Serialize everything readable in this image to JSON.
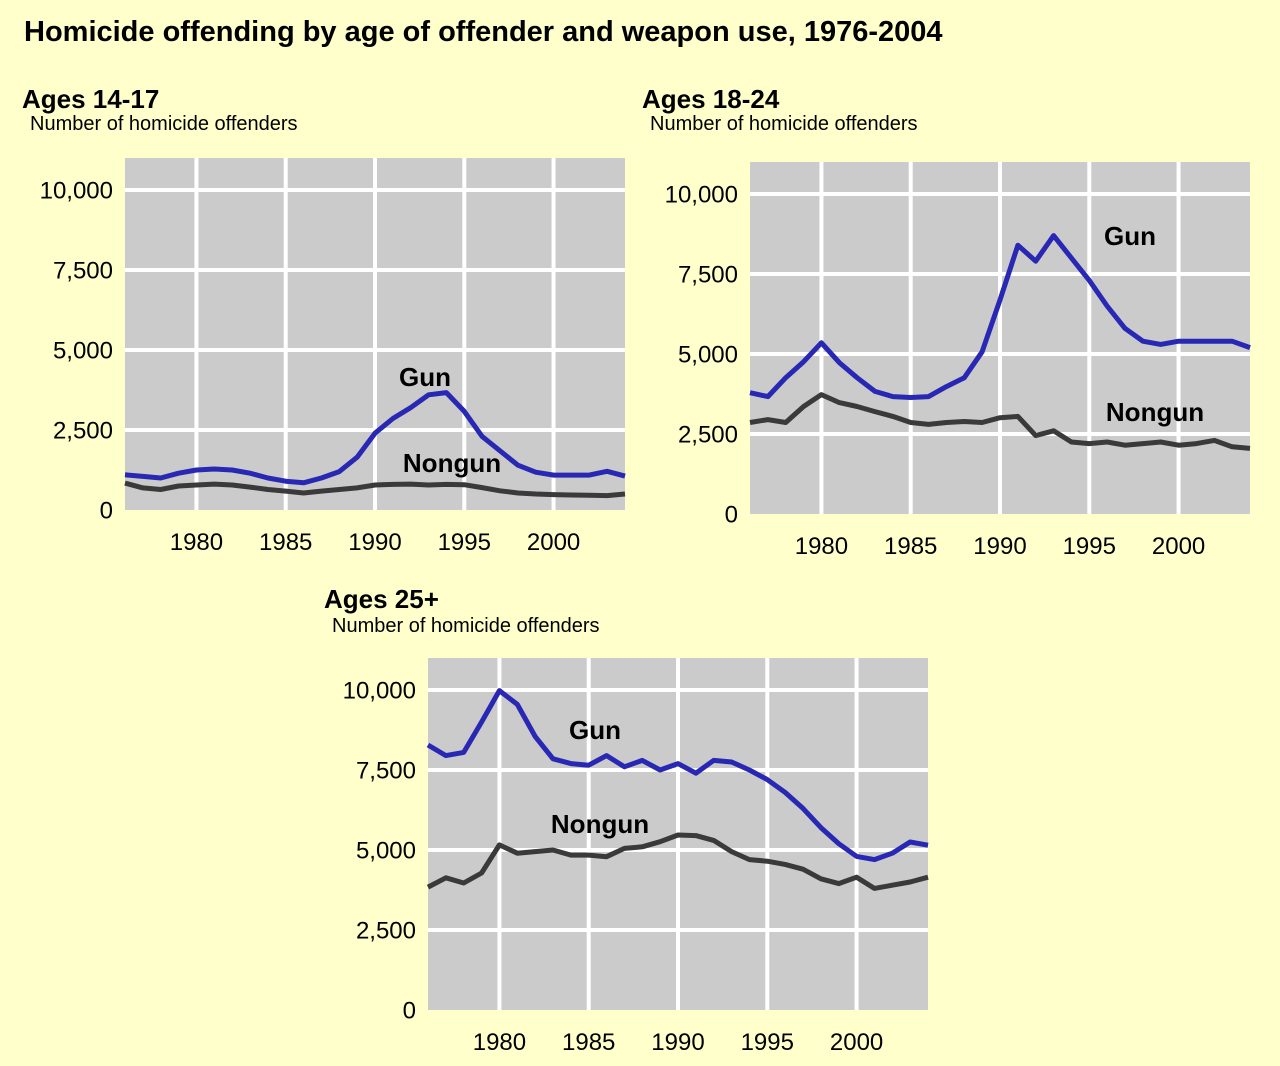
{
  "page": {
    "title": "Homicide offending by age of offender and weapon use, 1976-2004",
    "background_color": "#FFFFCC"
  },
  "colors": {
    "plot_bg": "#CBCBCB",
    "gridline": "#FFFFFF",
    "gun": "#2828B4",
    "nongun": "#3A3A3A",
    "text": "#000000"
  },
  "chart_data": [
    {
      "type": "line",
      "panel_title": "Ages 14-17",
      "ylabel": "Number of homicide offenders",
      "x": [
        1976,
        1977,
        1978,
        1979,
        1980,
        1981,
        1982,
        1983,
        1984,
        1985,
        1986,
        1987,
        1988,
        1989,
        1990,
        1991,
        1992,
        1993,
        1994,
        1995,
        1996,
        1997,
        1998,
        1999,
        2000,
        2001,
        2002,
        2003,
        2004
      ],
      "xlim": [
        1976,
        2004
      ],
      "ylim": [
        0,
        11000
      ],
      "grid": true,
      "legend_position": "inline-labels",
      "ytick_values": [
        0,
        2500,
        5000,
        7500,
        10000
      ],
      "ytick_labels": [
        "0",
        "2,500",
        "5,000",
        "7,500",
        "10,000"
      ],
      "xtick_values": [
        1980,
        1985,
        1990,
        1995,
        2000
      ],
      "xtick_labels": [
        "1980",
        "1985",
        "1990",
        "1995",
        "2000"
      ],
      "series": [
        {
          "name": "Nongun",
          "color": "#3A3A3A",
          "values": [
            840,
            690,
            640,
            750,
            780,
            810,
            780,
            715,
            640,
            590,
            530,
            590,
            640,
            690,
            780,
            800,
            810,
            780,
            800,
            790,
            700,
            600,
            530,
            500,
            480,
            470,
            460,
            450,
            500
          ]
        },
        {
          "name": "Gun",
          "color": "#2828B4",
          "values": [
            1100,
            1050,
            1000,
            1150,
            1250,
            1280,
            1250,
            1150,
            1000,
            900,
            850,
            1000,
            1200,
            1650,
            2400,
            2860,
            3200,
            3600,
            3670,
            3080,
            2300,
            1850,
            1400,
            1180,
            1090,
            1090,
            1090,
            1210,
            1060
          ]
        }
      ]
    },
    {
      "type": "line",
      "panel_title": "Ages 18-24",
      "ylabel": "Number of homicide offenders",
      "x": [
        1976,
        1977,
        1978,
        1979,
        1980,
        1981,
        1982,
        1983,
        1984,
        1985,
        1986,
        1987,
        1988,
        1989,
        1990,
        1991,
        1992,
        1993,
        1994,
        1995,
        1996,
        1997,
        1998,
        1999,
        2000,
        2001,
        2002,
        2003,
        2004
      ],
      "xlim": [
        1976,
        2004
      ],
      "ylim": [
        0,
        11000
      ],
      "grid": true,
      "legend_position": "inline-labels",
      "ytick_values": [
        0,
        2500,
        5000,
        7500,
        10000
      ],
      "ytick_labels": [
        "0",
        "2,500",
        "5,000",
        "7,500",
        "10,000"
      ],
      "xtick_values": [
        1980,
        1985,
        1990,
        1995,
        2000
      ],
      "xtick_labels": [
        "1980",
        "1985",
        "1990",
        "1995",
        "2000"
      ],
      "series": [
        {
          "name": "Nongun",
          "color": "#3A3A3A",
          "values": [
            2860,
            2950,
            2860,
            3360,
            3730,
            3480,
            3360,
            3200,
            3050,
            2860,
            2800,
            2860,
            2890,
            2860,
            3010,
            3050,
            2450,
            2600,
            2250,
            2200,
            2250,
            2150,
            2200,
            2250,
            2150,
            2200,
            2300,
            2100,
            2050
          ]
        },
        {
          "name": "Gun",
          "color": "#2828B4",
          "values": [
            3790,
            3670,
            4260,
            4760,
            5350,
            4730,
            4260,
            3830,
            3670,
            3640,
            3670,
            3980,
            4260,
            5070,
            6690,
            8400,
            7900,
            8700,
            8000,
            7300,
            6500,
            5800,
            5400,
            5300,
            5400,
            5400,
            5400,
            5400,
            5200
          ]
        }
      ]
    },
    {
      "type": "line",
      "panel_title": "Ages 25+",
      "ylabel": "Number of homicide offenders",
      "x": [
        1976,
        1977,
        1978,
        1979,
        1980,
        1981,
        1982,
        1983,
        1984,
        1985,
        1986,
        1987,
        1988,
        1989,
        1990,
        1991,
        1992,
        1993,
        1994,
        1995,
        1996,
        1997,
        1998,
        1999,
        2000,
        2001,
        2002,
        2003,
        2004
      ],
      "xlim": [
        1976,
        2004
      ],
      "ylim": [
        0,
        11000
      ],
      "grid": true,
      "legend_position": "inline-labels",
      "ytick_values": [
        0,
        2500,
        5000,
        7500,
        10000
      ],
      "ytick_labels": [
        "0",
        "2,500",
        "5,000",
        "7,500",
        "10,000"
      ],
      "xtick_values": [
        1980,
        1985,
        1990,
        1995,
        2000
      ],
      "xtick_labels": [
        "1980",
        "1985",
        "1990",
        "1995",
        "2000"
      ],
      "series": [
        {
          "name": "Nongun",
          "color": "#3A3A3A",
          "values": [
            3840,
            4130,
            3970,
            4280,
            5160,
            4900,
            4950,
            5000,
            4840,
            4840,
            4790,
            5050,
            5100,
            5260,
            5470,
            5450,
            5300,
            4950,
            4700,
            4650,
            4550,
            4400,
            4100,
            3950,
            4150,
            3800,
            3900,
            4000,
            4150
          ]
        },
        {
          "name": "Gun",
          "color": "#2828B4",
          "values": [
            8280,
            7950,
            8050,
            9000,
            9980,
            9550,
            8550,
            7850,
            7700,
            7650,
            7950,
            7600,
            7800,
            7500,
            7700,
            7400,
            7800,
            7750,
            7500,
            7200,
            6800,
            6300,
            5700,
            5200,
            4800,
            4700,
            4900,
            5250,
            5150
          ]
        }
      ]
    }
  ]
}
